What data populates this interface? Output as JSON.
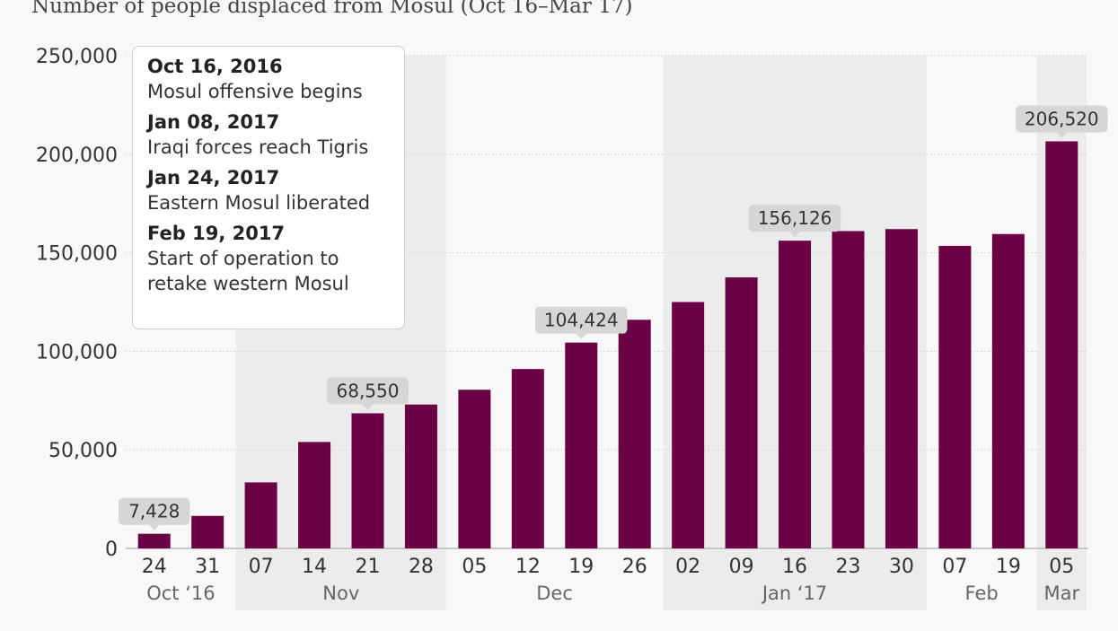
{
  "chart_data": {
    "type": "bar",
    "title": "Number of people displaced from Mosul (Oct 16–Mar 17)",
    "xlabel": "",
    "ylabel": "",
    "ylim": [
      0,
      250000
    ],
    "yticks": [
      0,
      50000,
      100000,
      150000,
      200000,
      250000
    ],
    "ytick_labels": [
      "0",
      "50,000",
      "100,000",
      "150,000",
      "200,000",
      "250,000"
    ],
    "grid": true,
    "bar_color": "#6b0045",
    "categories": [
      "24",
      "31",
      "07",
      "14",
      "21",
      "28",
      "05",
      "12",
      "19",
      "26",
      "02",
      "09",
      "16",
      "23",
      "30",
      "07",
      "19",
      "05"
    ],
    "values": [
      7428,
      16500,
      33500,
      54000,
      68550,
      73000,
      80500,
      91000,
      104424,
      116000,
      125000,
      137500,
      156126,
      161000,
      162000,
      153500,
      159500,
      206520
    ],
    "data_labels": [
      {
        "index": 0,
        "text": "7,428"
      },
      {
        "index": 4,
        "text": "68,550"
      },
      {
        "index": 8,
        "text": "104,424"
      },
      {
        "index": 12,
        "text": "156,126"
      },
      {
        "index": 17,
        "text": "206,520"
      }
    ],
    "month_groups": [
      {
        "label": "Oct ‘16",
        "start": 0,
        "end": 1,
        "shaded": false
      },
      {
        "label": "Nov",
        "start": 2,
        "end": 5,
        "shaded": true
      },
      {
        "label": "Dec",
        "start": 6,
        "end": 9,
        "shaded": false
      },
      {
        "label": "Jan ‘17",
        "start": 10,
        "end": 14,
        "shaded": true
      },
      {
        "label": "Feb",
        "start": 15,
        "end": 16,
        "shaded": false
      },
      {
        "label": "Mar",
        "start": 17,
        "end": 17,
        "shaded": true
      }
    ],
    "annotations": [
      {
        "date": "Oct 16, 2016",
        "text": "Mosul offensive begins"
      },
      {
        "date": "Jan 08, 2017",
        "text": "Iraqi forces reach Tigris"
      },
      {
        "date": "Jan 24, 2017",
        "text": "Eastern Mosul liberated"
      },
      {
        "date": "Feb 19, 2017",
        "text": "Start of operation to retake western Mosul"
      }
    ]
  }
}
